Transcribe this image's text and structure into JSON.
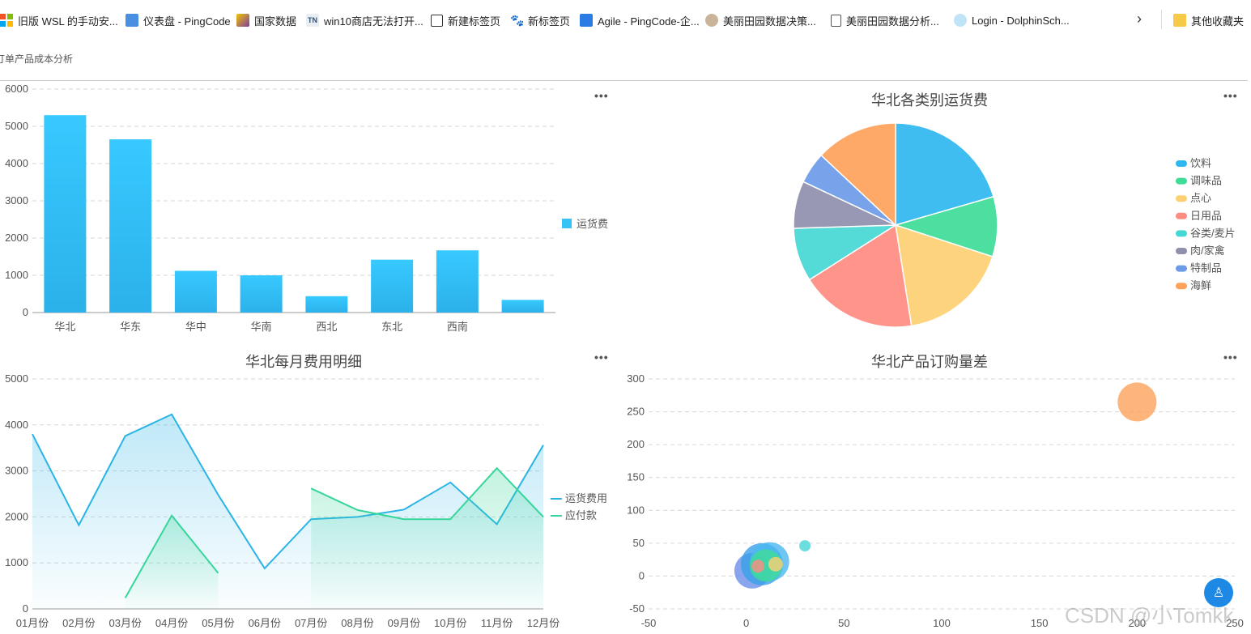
{
  "bookmarks": [
    {
      "label": "旧版 WSL 的手动安...",
      "icon": "windows-logo-icon",
      "color": "#f35325"
    },
    {
      "label": "仪表盘 - PingCode",
      "icon": "pingcode-icon",
      "color": "#4a90e2"
    },
    {
      "label": "国家数据",
      "icon": "stats-cube-icon",
      "color": "#7b3fa0"
    },
    {
      "label": "win10商店无法打开...",
      "icon": "tn-site-icon",
      "color": "#35506b"
    },
    {
      "label": "新建标签页",
      "icon": "new-tab-icon",
      "color": "#333333"
    },
    {
      "label": "新标签页",
      "icon": "baidu-paw-icon",
      "color": "#2932e1"
    },
    {
      "label": "Agile - PingCode-企...",
      "icon": "agile-icon",
      "color": "#2c7be5"
    },
    {
      "label": "美丽田园数据决策...",
      "icon": "bird-logo-icon",
      "color": "#a08060"
    },
    {
      "label": "美丽田园数据分析...",
      "icon": "document-icon",
      "color": "#555555"
    },
    {
      "label": "Login - DolphinSch...",
      "icon": "dolphin-icon",
      "color": "#5bb3e0"
    }
  ],
  "bookmarks_more": "其他收藏夹",
  "page_title": "订单产品成本分析",
  "watermark": "CSDN @小Tomkk",
  "charts": {
    "bar_title": "",
    "pie_title": "华北各类别运货费",
    "line_title": "华北每月费用明细",
    "scatter_title": "华北产品订购量差"
  },
  "chart_data": [
    {
      "type": "bar",
      "title": "",
      "categories": [
        "华北",
        "华东",
        "华中",
        "华南",
        "西北",
        "东北",
        "西南",
        ""
      ],
      "series": [
        {
          "name": "运货费",
          "values": [
            5300,
            4650,
            1120,
            1000,
            440,
            1420,
            1670,
            340
          ]
        }
      ],
      "ylim": [
        0,
        6000
      ],
      "yticks": [
        0,
        1000,
        2000,
        3000,
        4000,
        5000,
        6000
      ],
      "grid": true,
      "legend": "right",
      "color": "#35c2f5"
    },
    {
      "type": "pie",
      "title": "华北各类别运货费",
      "legend": "right",
      "slices": [
        {
          "name": "饮料",
          "value": 20.5,
          "color": "#2fb7f0"
        },
        {
          "name": "调味品",
          "value": 9.5,
          "color": "#3ddc97"
        },
        {
          "name": "点心",
          "value": 17.5,
          "color": "#fdd072"
        },
        {
          "name": "日用品",
          "value": 18.5,
          "color": "#ff8c80"
        },
        {
          "name": "谷类/麦片",
          "value": 8.5,
          "color": "#45d7d4"
        },
        {
          "name": "肉/家禽",
          "value": 7.5,
          "color": "#8f8fae"
        },
        {
          "name": "特制品",
          "value": 5,
          "color": "#6c9be8"
        },
        {
          "name": "海鲜",
          "value": 13,
          "color": "#fea25a"
        }
      ]
    },
    {
      "type": "area",
      "title": "华北每月费用明细",
      "categories": [
        "01月份",
        "02月份",
        "03月份",
        "04月份",
        "05月份",
        "06月份",
        "07月份",
        "08月份",
        "09月份",
        "10月份",
        "11月份",
        "12月份"
      ],
      "series": [
        {
          "name": "运货费用",
          "values": [
            3800,
            1820,
            3760,
            4230,
            2480,
            880,
            1950,
            2000,
            2160,
            2750,
            1840,
            3560
          ],
          "color": "#2ab4e6"
        },
        {
          "name": "应付款",
          "values": [
            null,
            null,
            240,
            2030,
            780,
            null,
            2620,
            2150,
            1950,
            1950,
            3060,
            2000
          ],
          "color": "#36d69a"
        }
      ],
      "ylim": [
        0,
        5000
      ],
      "yticks": [
        0,
        1000,
        2000,
        3000,
        4000,
        5000
      ],
      "grid": true,
      "legend": "right"
    },
    {
      "type": "scatter",
      "title": "华北产品订购量差",
      "xlim": [
        -50,
        250
      ],
      "ylim": [
        -50,
        300
      ],
      "xticks": [
        -50,
        0,
        50,
        100,
        150,
        200,
        250
      ],
      "yticks": [
        -50,
        0,
        50,
        100,
        150,
        200,
        250,
        300
      ],
      "grid": true,
      "points": [
        {
          "x": 3,
          "y": 8,
          "size": 22,
          "color": "#6c8fe8"
        },
        {
          "x": 8,
          "y": 18,
          "size": 26,
          "color": "#3aa0e8"
        },
        {
          "x": 12,
          "y": 22,
          "size": 24,
          "color": "#4bb8f0"
        },
        {
          "x": 10,
          "y": 16,
          "size": 20,
          "color": "#3ddc97"
        },
        {
          "x": 6,
          "y": 15,
          "size": 8,
          "color": "#ff8c80"
        },
        {
          "x": 15,
          "y": 18,
          "size": 9,
          "color": "#fdd072"
        },
        {
          "x": 30,
          "y": 46,
          "size": 7,
          "color": "#45d7d4"
        },
        {
          "x": 200,
          "y": 265,
          "size": 24,
          "color": "#fea25a"
        }
      ]
    }
  ]
}
